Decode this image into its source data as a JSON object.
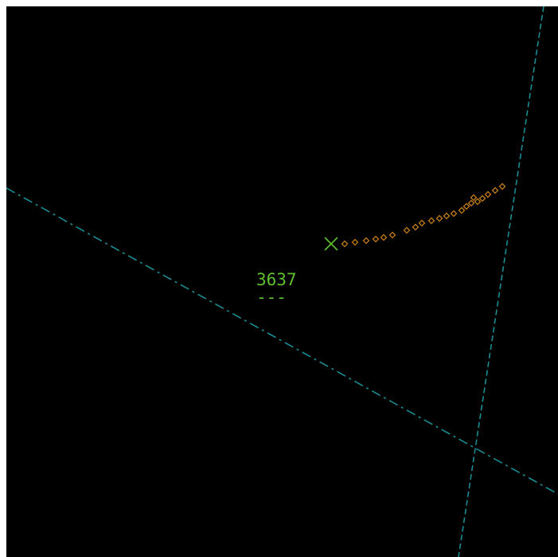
{
  "display": {
    "background_color": "#000000",
    "frame_color": "#ffffff"
  },
  "boundaries": {
    "color": "#1a8c93",
    "lines": [
      {
        "name": "boundary-line-west"
      },
      {
        "name": "boundary-line-east"
      }
    ]
  },
  "target": {
    "symbol_icon": "x-target-icon",
    "color": "#5fbf2e",
    "history_icon": "diamond-history-icon",
    "history_color": "#c07a1a",
    "history_count": 22
  },
  "datablock": {
    "beacon_code": "3637",
    "altitude": "---",
    "color": "#5fbf2e"
  }
}
